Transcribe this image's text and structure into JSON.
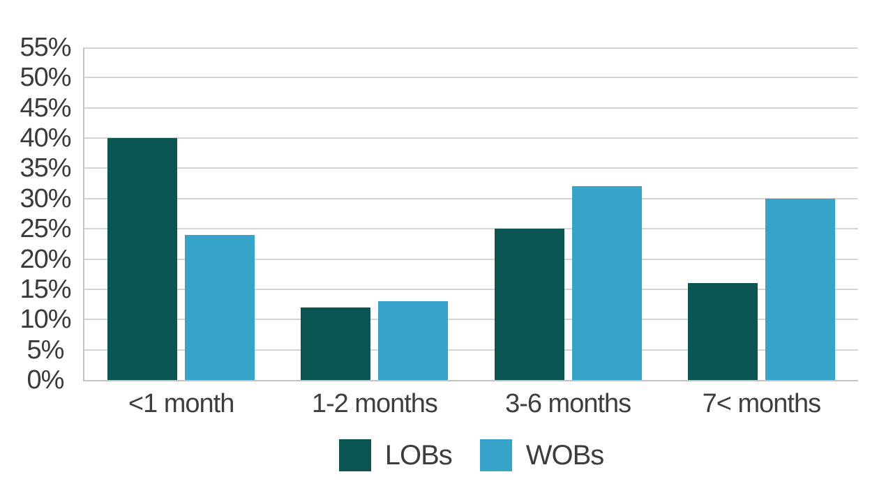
{
  "chart_data": {
    "type": "bar",
    "title": "",
    "xlabel": "",
    "ylabel": "",
    "categories": [
      "<1 month",
      "1-2 months",
      "3-6 months",
      "7< months"
    ],
    "series": [
      {
        "name": "LOBs",
        "color": "#0a5551",
        "values": [
          40,
          12,
          25,
          16
        ]
      },
      {
        "name": "WOBs",
        "color": "#38a3c8",
        "values": [
          24,
          13,
          32,
          30
        ]
      }
    ],
    "ylim": [
      0,
      55
    ],
    "ytick_step": 5,
    "ytick_labels": [
      "0%",
      "5%",
      "10%",
      "15%",
      "20%",
      "25%",
      "30%",
      "35%",
      "40%",
      "45%",
      "50%",
      "55%"
    ],
    "grid": true,
    "legend_position": "bottom"
  },
  "styles": {
    "background": "#ffffff",
    "grid_color": "#d7d3d0",
    "axis_color": "#c6c2bf",
    "text_color": "#3d3d3d"
  }
}
